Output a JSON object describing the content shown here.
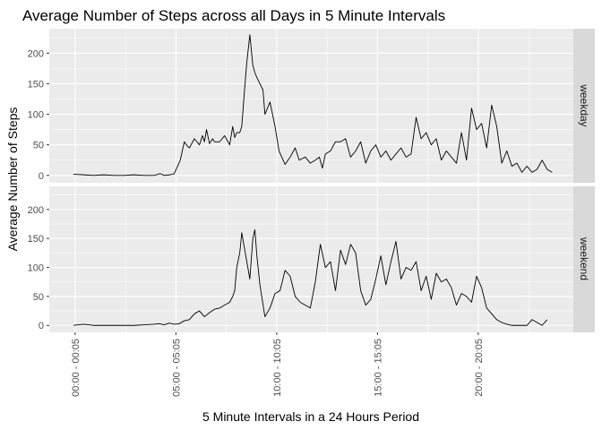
{
  "chart_data": {
    "type": "line",
    "title": "Average Number of Steps across all Days in 5 Minute Intervals",
    "xlabel": "5 Minute Intervals in a 24 Hours Period",
    "ylabel": "Average Number of Steps",
    "x_unit": "hour of day",
    "xlim": [
      -1.2,
      24.8
    ],
    "ylim": [
      -12,
      240
    ],
    "y_ticks": [
      0,
      50,
      100,
      150,
      200
    ],
    "x_ticks": [
      {
        "value": 0.083,
        "label": "00:00 - 00:05"
      },
      {
        "value": 5.083,
        "label": "05:00 - 05:05"
      },
      {
        "value": 10.083,
        "label": "10:00 - 10:05"
      },
      {
        "value": 15.083,
        "label": "15:00 - 15:05"
      },
      {
        "value": 20.083,
        "label": "20:00 - 20:05"
      }
    ],
    "grid": true,
    "line_color": "#000000",
    "panel_background": "#ebebeb",
    "strip_background": "#d9d9d9",
    "facets": [
      {
        "label": "weekday",
        "series": [
          {
            "x": [
              0.0,
              0.5,
              1.0,
              1.5,
              2.0,
              2.5,
              3.0,
              3.5,
              4.0,
              4.3,
              4.5,
              4.8,
              5.0,
              5.3,
              5.5,
              5.6,
              5.75,
              6.0,
              6.25,
              6.4,
              6.5,
              6.6,
              6.75,
              6.9,
              7.0,
              7.25,
              7.5,
              7.75,
              7.9,
              8.0,
              8.1,
              8.25,
              8.35,
              8.5,
              8.6,
              8.75,
              8.9,
              9.0,
              9.1,
              9.25,
              9.4,
              9.5,
              9.75,
              10.0,
              10.2,
              10.5,
              10.75,
              11.0,
              11.2,
              11.5,
              11.75,
              12.0,
              12.2,
              12.35,
              12.5,
              12.75,
              13.0,
              13.25,
              13.5,
              13.75,
              14.0,
              14.25,
              14.5,
              14.75,
              15.0,
              15.25,
              15.5,
              15.75,
              16.0,
              16.25,
              16.5,
              16.75,
              17.0,
              17.25,
              17.5,
              17.75,
              18.0,
              18.25,
              18.5,
              18.75,
              19.0,
              19.25,
              19.5,
              19.75,
              20.0,
              20.25,
              20.5,
              20.75,
              21.0,
              21.25,
              21.5,
              21.75,
              22.0,
              22.25,
              22.5,
              22.75,
              23.0,
              23.25,
              23.5,
              23.75
            ],
            "y": [
              2,
              1,
              0,
              1,
              0,
              0,
              1,
              0,
              0,
              3,
              0,
              1,
              3,
              25,
              55,
              50,
              45,
              60,
              50,
              65,
              55,
              75,
              52,
              60,
              55,
              55,
              65,
              50,
              80,
              62,
              70,
              70,
              80,
              145,
              185,
              230,
              180,
              168,
              160,
              150,
              140,
              100,
              120,
              80,
              40,
              18,
              30,
              45,
              25,
              30,
              20,
              25,
              30,
              12,
              35,
              40,
              55,
              55,
              60,
              30,
              40,
              55,
              20,
              40,
              50,
              30,
              40,
              25,
              35,
              45,
              30,
              35,
              95,
              60,
              70,
              50,
              60,
              25,
              40,
              30,
              20,
              70,
              25,
              110,
              75,
              85,
              45,
              115,
              80,
              20,
              40,
              15,
              20,
              5,
              15,
              5,
              10,
              25,
              10,
              5
            ]
          }
        ]
      },
      {
        "label": "weekend",
        "series": [
          {
            "x": [
              0.0,
              0.5,
              1.0,
              1.5,
              2.0,
              2.5,
              3.0,
              3.5,
              4.0,
              4.25,
              4.5,
              4.75,
              5.0,
              5.25,
              5.5,
              5.75,
              6.0,
              6.25,
              6.5,
              6.75,
              7.0,
              7.25,
              7.5,
              7.75,
              7.9,
              8.0,
              8.1,
              8.25,
              8.35,
              8.5,
              8.6,
              8.75,
              8.9,
              9.0,
              9.1,
              9.25,
              9.5,
              9.75,
              10.0,
              10.25,
              10.5,
              10.75,
              11.0,
              11.25,
              11.5,
              11.75,
              12.0,
              12.25,
              12.5,
              12.75,
              13.0,
              13.25,
              13.5,
              13.75,
              14.0,
              14.25,
              14.5,
              14.75,
              15.0,
              15.25,
              15.5,
              15.75,
              16.0,
              16.25,
              16.5,
              16.75,
              17.0,
              17.25,
              17.5,
              17.75,
              18.0,
              18.25,
              18.5,
              18.75,
              19.0,
              19.25,
              19.5,
              19.75,
              20.0,
              20.25,
              20.5,
              20.75,
              21.0,
              21.25,
              21.5,
              21.75,
              22.0,
              22.25,
              22.5,
              22.75,
              23.0,
              23.25,
              23.5
            ],
            "y": [
              0,
              2,
              0,
              0,
              0,
              0,
              0,
              1,
              2,
              3,
              1,
              4,
              2,
              3,
              8,
              10,
              20,
              25,
              15,
              22,
              28,
              30,
              35,
              40,
              50,
              60,
              100,
              125,
              160,
              130,
              110,
              80,
              150,
              165,
              120,
              70,
              15,
              30,
              55,
              60,
              95,
              85,
              50,
              40,
              35,
              30,
              75,
              140,
              100,
              110,
              60,
              130,
              105,
              140,
              125,
              60,
              35,
              45,
              80,
              120,
              70,
              110,
              145,
              80,
              100,
              95,
              110,
              60,
              85,
              45,
              90,
              75,
              80,
              65,
              35,
              55,
              50,
              40,
              85,
              65,
              30,
              20,
              10,
              5,
              2,
              0,
              0,
              0,
              0,
              10,
              5,
              0,
              10
            ]
          }
        ]
      }
    ]
  }
}
